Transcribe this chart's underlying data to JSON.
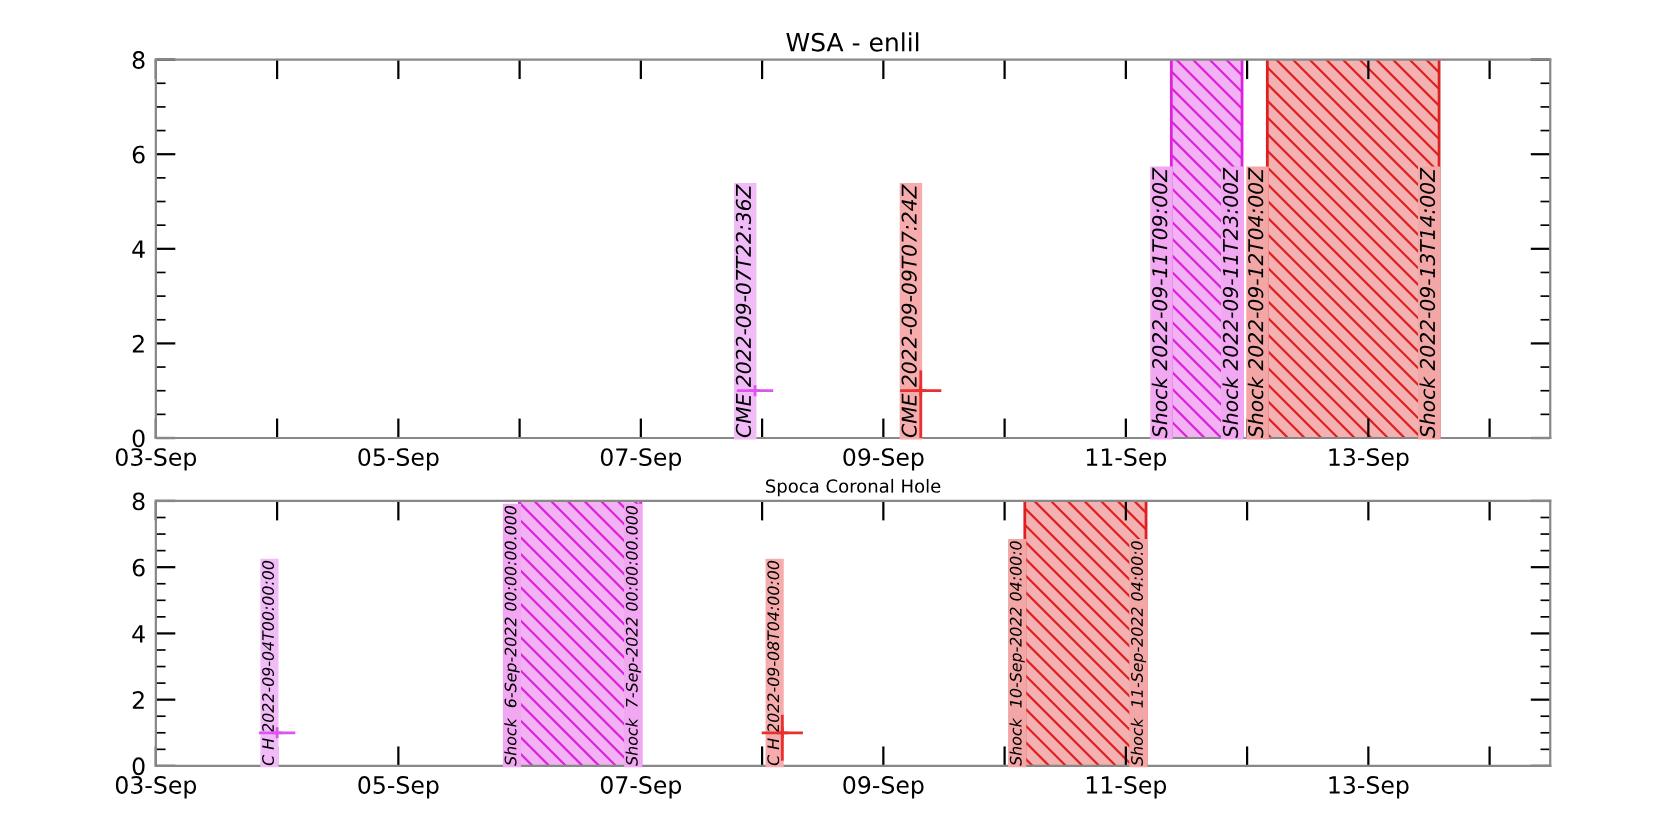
{
  "chart_data": [
    {
      "type": "scatter",
      "title": "WSA - enlil",
      "marker": "cross",
      "xlim": [
        "2022-09-03",
        "2022-09-14T12:00"
      ],
      "ylim": [
        0,
        8
      ],
      "yticks": [
        0,
        2,
        4,
        6,
        8
      ],
      "xticks": [
        {
          "value": "2022-09-03",
          "label": "03-Sep"
        },
        {
          "value": "2022-09-04",
          "label": null
        },
        {
          "value": "2022-09-05",
          "label": "05-Sep"
        },
        {
          "value": "2022-09-06",
          "label": null
        },
        {
          "value": "2022-09-07",
          "label": "07-Sep"
        },
        {
          "value": "2022-09-08",
          "label": null
        },
        {
          "value": "2022-09-09",
          "label": "09-Sep"
        },
        {
          "value": "2022-09-10",
          "label": null
        },
        {
          "value": "2022-09-11",
          "label": "11-Sep"
        },
        {
          "value": "2022-09-12",
          "label": null
        },
        {
          "value": "2022-09-13",
          "label": "13-Sep"
        },
        {
          "value": "2022-09-14",
          "label": null
        }
      ],
      "series": [
        {
          "name": "CME 2022-09-07T22:36Z",
          "color": "#dd55ee",
          "x": [
            "2022-09-07T22:36"
          ],
          "values": [
            1
          ],
          "xerrors": [
            0.15
          ],
          "errors": [
            null
          ]
        },
        {
          "name": "CME 2022-09-09T07:24Z",
          "color": "#e83030",
          "x": [
            "2022-09-09T07:24"
          ],
          "values": [
            1
          ],
          "xerrors": [
            0.17
          ],
          "errors": [
            [
              0,
              1.4
            ]
          ]
        }
      ],
      "bands": [
        {
          "axis": "x",
          "from": "2022-09-11T09:00",
          "to": "2022-09-11T23:00",
          "color": "#dd22dd"
        },
        {
          "axis": "x",
          "from": "2022-09-12T04:00",
          "to": "2022-09-13T14:00",
          "color": "#e02020"
        }
      ],
      "ref_lines": [
        {
          "axis": "x",
          "value": "2022-09-11T09:00",
          "label": "Shock 2022-09-11T09:00Z",
          "color": "#dd22dd"
        },
        {
          "axis": "x",
          "value": "2022-09-11T23:00",
          "label": "Shock 2022-09-11T23:00Z",
          "color": "#dd22dd"
        },
        {
          "axis": "x",
          "value": "2022-09-12T04:00",
          "label": "Shock 2022-09-12T04:00Z",
          "color": "#e02020"
        },
        {
          "axis": "x",
          "value": "2022-09-13T14:00",
          "label": "Shock 2022-09-13T14:00Z",
          "color": "#e02020"
        }
      ]
    },
    {
      "type": "scatter",
      "title": "Spoca Coronal Hole",
      "marker": "cross",
      "xlim": [
        "2022-09-03",
        "2022-09-14T12:00"
      ],
      "ylim": [
        0,
        8
      ],
      "yticks": [
        0,
        2,
        4,
        6,
        8
      ],
      "xticks": [
        {
          "value": "2022-09-03",
          "label": "03-Sep"
        },
        {
          "value": "2022-09-04",
          "label": null
        },
        {
          "value": "2022-09-05",
          "label": "05-Sep"
        },
        {
          "value": "2022-09-06",
          "label": null
        },
        {
          "value": "2022-09-07",
          "label": "07-Sep"
        },
        {
          "value": "2022-09-08",
          "label": null
        },
        {
          "value": "2022-09-09",
          "label": "09-Sep"
        },
        {
          "value": "2022-09-10",
          "label": null
        },
        {
          "value": "2022-09-11",
          "label": "11-Sep"
        },
        {
          "value": "2022-09-12",
          "label": null
        },
        {
          "value": "2022-09-13",
          "label": "13-Sep"
        },
        {
          "value": "2022-09-14",
          "label": null
        }
      ],
      "series": [
        {
          "name": "C H 2022-09-04T00:00:00",
          "color": "#dd55ee",
          "x": [
            "2022-09-04T00:00"
          ],
          "values": [
            1
          ],
          "xerrors": [
            0.15
          ],
          "errors": [
            null
          ]
        },
        {
          "name": "C H 2022-09-08T04:00:00",
          "color": "#e83030",
          "x": [
            "2022-09-08T04:00"
          ],
          "values": [
            1
          ],
          "xerrors": [
            0.17
          ],
          "errors": [
            [
              0.2,
              1.5
            ]
          ]
        }
      ],
      "bands": [
        {
          "axis": "x",
          "from": "2022-09-06T00:00",
          "to": "2022-09-07T00:00",
          "color": "#dd22dd"
        },
        {
          "axis": "x",
          "from": "2022-09-10T04:00",
          "to": "2022-09-11T04:00",
          "color": "#e02020"
        }
      ],
      "ref_lines": [
        {
          "axis": "x",
          "value": "2022-09-06T00:00",
          "label": "Shock  6-Sep-2022 00:00:00.000",
          "color": "#dd22dd"
        },
        {
          "axis": "x",
          "value": "2022-09-07T00:00",
          "label": "Shock  7-Sep-2022 00:00:00.000",
          "color": "#dd22dd"
        },
        {
          "axis": "x",
          "value": "2022-09-10T04:00",
          "label": "Shock  10-Sep-2022 04:00:0",
          "color": "#e02020"
        },
        {
          "axis": "x",
          "value": "2022-09-11T04:00",
          "label": "Shock  11-Sep-2022 04:00:0",
          "color": "#e02020"
        }
      ]
    }
  ]
}
